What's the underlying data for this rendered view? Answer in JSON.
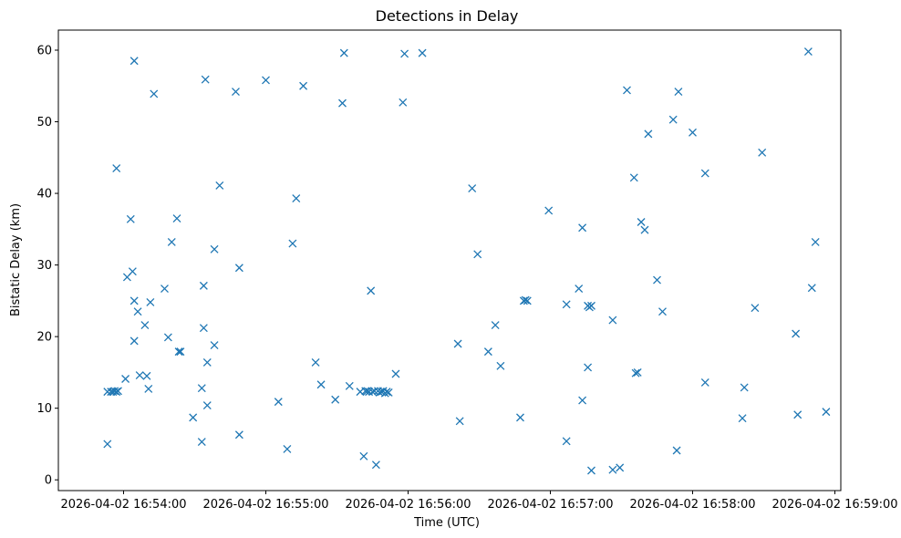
{
  "chart_data": {
    "type": "scatter",
    "title": "Detections in Delay",
    "xlabel": "Time (UTC)",
    "ylabel": "Bistatic Delay (km)",
    "marker": "x",
    "color": "#1f77b4",
    "grid": false,
    "xlim": [
      -27.5,
      302.5
    ],
    "ylim": [
      -1.5,
      62.8
    ],
    "x_reference": "2026-04-02 16:54:00",
    "x_units": "seconds since 2026-04-02 16:54:00",
    "x_ticks": [
      {
        "value": 0,
        "label": "2026-04-02 16:54:00"
      },
      {
        "value": 60,
        "label": "2026-04-02 16:55:00"
      },
      {
        "value": 120,
        "label": "2026-04-02 16:56:00"
      },
      {
        "value": 180,
        "label": "2026-04-02 16:57:00"
      },
      {
        "value": 240,
        "label": "2026-04-02 16:58:00"
      },
      {
        "value": 300,
        "label": "2026-04-02 16:59:00"
      }
    ],
    "y_ticks": [
      {
        "value": 0,
        "label": "0"
      },
      {
        "value": 10,
        "label": "10"
      },
      {
        "value": 20,
        "label": "20"
      },
      {
        "value": 30,
        "label": "30"
      },
      {
        "value": 40,
        "label": "40"
      },
      {
        "value": 50,
        "label": "50"
      },
      {
        "value": 60,
        "label": "60"
      }
    ],
    "series": [
      {
        "name": "Detections",
        "points": [
          [
            -6.8,
            12.3
          ],
          [
            -6.8,
            5.0
          ],
          [
            -5.3,
            12.3
          ],
          [
            -4.5,
            12.3
          ],
          [
            -3.8,
            12.4
          ],
          [
            -3.0,
            12.3
          ],
          [
            -2.3,
            12.4
          ],
          [
            -3.0,
            43.5
          ],
          [
            0.8,
            14.1
          ],
          [
            1.5,
            28.3
          ],
          [
            3.0,
            36.4
          ],
          [
            3.8,
            29.1
          ],
          [
            4.5,
            25.0
          ],
          [
            4.5,
            19.4
          ],
          [
            4.5,
            58.5
          ],
          [
            6.0,
            23.5
          ],
          [
            6.8,
            14.6
          ],
          [
            9.0,
            21.6
          ],
          [
            9.8,
            14.5
          ],
          [
            10.5,
            12.7
          ],
          [
            11.3,
            24.8
          ],
          [
            12.8,
            53.9
          ],
          [
            17.3,
            26.7
          ],
          [
            18.8,
            19.9
          ],
          [
            20.3,
            33.2
          ],
          [
            22.5,
            36.5
          ],
          [
            23.3,
            17.9
          ],
          [
            24.0,
            17.9
          ],
          [
            29.3,
            8.7
          ],
          [
            33.0,
            5.3
          ],
          [
            33.0,
            12.8
          ],
          [
            33.8,
            21.2
          ],
          [
            33.8,
            27.1
          ],
          [
            34.5,
            55.9
          ],
          [
            35.3,
            10.4
          ],
          [
            35.3,
            16.4
          ],
          [
            38.3,
            18.8
          ],
          [
            38.3,
            32.2
          ],
          [
            40.5,
            41.1
          ],
          [
            47.3,
            54.2
          ],
          [
            48.8,
            29.6
          ],
          [
            48.8,
            6.3
          ],
          [
            60.0,
            55.8
          ],
          [
            65.3,
            10.9
          ],
          [
            69.0,
            4.3
          ],
          [
            71.3,
            33.0
          ],
          [
            72.8,
            39.3
          ],
          [
            75.8,
            55.0
          ],
          [
            81.0,
            16.4
          ],
          [
            83.3,
            13.3
          ],
          [
            89.3,
            11.2
          ],
          [
            92.3,
            52.6
          ],
          [
            93.0,
            59.6
          ],
          [
            95.3,
            13.1
          ],
          [
            99.8,
            12.3
          ],
          [
            101.3,
            3.3
          ],
          [
            102.0,
            12.4
          ],
          [
            102.8,
            12.4
          ],
          [
            103.5,
            12.3
          ],
          [
            104.3,
            26.4
          ],
          [
            105.0,
            12.3
          ],
          [
            105.8,
            12.4
          ],
          [
            106.5,
            2.1
          ],
          [
            107.3,
            12.4
          ],
          [
            108.0,
            12.2
          ],
          [
            108.8,
            12.3
          ],
          [
            109.5,
            12.4
          ],
          [
            110.3,
            12.1
          ],
          [
            111.0,
            12.3
          ],
          [
            111.8,
            12.2
          ],
          [
            114.8,
            14.8
          ],
          [
            117.8,
            52.7
          ],
          [
            118.5,
            59.5
          ],
          [
            126.0,
            59.6
          ],
          [
            141.0,
            19.0
          ],
          [
            141.8,
            8.2
          ],
          [
            147.0,
            40.7
          ],
          [
            149.3,
            31.5
          ],
          [
            153.8,
            17.9
          ],
          [
            156.8,
            21.6
          ],
          [
            159.0,
            15.9
          ],
          [
            167.3,
            8.7
          ],
          [
            168.8,
            25.0
          ],
          [
            169.5,
            25.1
          ],
          [
            170.3,
            25.0
          ],
          [
            179.3,
            37.6
          ],
          [
            186.8,
            5.4
          ],
          [
            186.8,
            24.5
          ],
          [
            192.0,
            26.7
          ],
          [
            193.5,
            11.1
          ],
          [
            193.5,
            35.2
          ],
          [
            195.8,
            15.7
          ],
          [
            195.8,
            24.3
          ],
          [
            196.5,
            24.1
          ],
          [
            197.3,
            24.3
          ],
          [
            197.3,
            1.3
          ],
          [
            206.3,
            22.3
          ],
          [
            206.3,
            1.4
          ],
          [
            209.3,
            1.7
          ],
          [
            212.3,
            54.4
          ],
          [
            215.3,
            42.2
          ],
          [
            216.0,
            14.9
          ],
          [
            216.8,
            15.0
          ],
          [
            218.3,
            36.0
          ],
          [
            219.8,
            34.9
          ],
          [
            221.3,
            48.3
          ],
          [
            225.0,
            27.9
          ],
          [
            227.3,
            23.5
          ],
          [
            231.8,
            50.3
          ],
          [
            233.3,
            4.1
          ],
          [
            234.0,
            54.2
          ],
          [
            240.0,
            48.5
          ],
          [
            245.3,
            13.6
          ],
          [
            245.3,
            42.8
          ],
          [
            261.0,
            8.6
          ],
          [
            261.8,
            12.9
          ],
          [
            266.3,
            24.0
          ],
          [
            269.3,
            45.7
          ],
          [
            283.5,
            20.4
          ],
          [
            284.3,
            9.1
          ],
          [
            288.8,
            59.8
          ],
          [
            290.3,
            26.8
          ],
          [
            291.8,
            33.2
          ],
          [
            296.3,
            9.5
          ]
        ]
      }
    ]
  }
}
